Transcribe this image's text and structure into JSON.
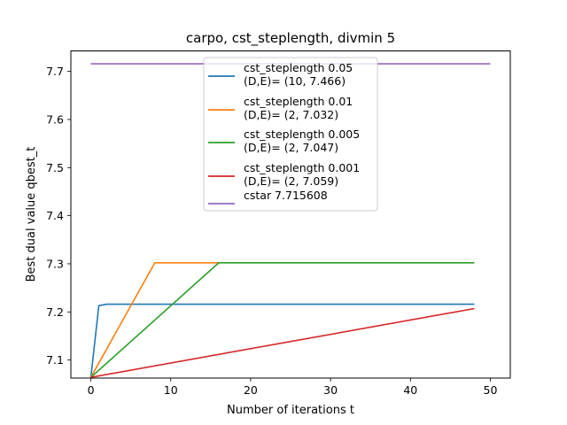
{
  "chart_data": {
    "type": "line",
    "title": "carpo, cst_steplength, divmin 5",
    "xlabel": "Number of iterations t",
    "ylabel": "Best dual value qbest_t",
    "xlim": [
      -2.5,
      52.5
    ],
    "ylim": [
      7.0625,
      7.7425
    ],
    "xticks": [
      0,
      10,
      20,
      30,
      40,
      50
    ],
    "xtick_labels": [
      "0",
      "10",
      "20",
      "30",
      "40",
      "50"
    ],
    "yticks": [
      7.1,
      7.2,
      7.3,
      7.4,
      7.5,
      7.6,
      7.7
    ],
    "ytick_labels": [
      "7.1",
      "7.2",
      "7.3",
      "7.4",
      "7.5",
      "7.6",
      "7.7"
    ],
    "grid": false,
    "legend_position": "upper-center",
    "series": [
      {
        "name": "cst_steplength 0.05",
        "name_line2": "(D,E)= (10, 7.466)",
        "color": "#1f77b4",
        "x": [
          0,
          1,
          2,
          48
        ],
        "y": [
          7.064,
          7.213,
          7.216,
          7.216
        ]
      },
      {
        "name": "cst_steplength 0.01",
        "name_line2": "(D,E)= (2, 7.032)",
        "color": "#ff7f0e",
        "x": [
          0,
          8,
          16
        ],
        "y": [
          7.064,
          7.302,
          7.302
        ]
      },
      {
        "name": "cst_steplength 0.005",
        "name_line2": "(D,E)= (2, 7.047)",
        "color": "#2ca02c",
        "x": [
          0,
          16,
          48
        ],
        "y": [
          7.064,
          7.302,
          7.302
        ]
      },
      {
        "name": "cst_steplength 0.001",
        "name_line2": "(D,E)= (2, 7.059)",
        "color": "#d62728",
        "x": [
          0,
          48
        ],
        "y": [
          7.064,
          7.207
        ]
      },
      {
        "name": "cstar 7.715608",
        "name_line2": "",
        "color": "#9467bd",
        "x": [
          0,
          50
        ],
        "y": [
          7.715608,
          7.715608
        ]
      }
    ]
  }
}
